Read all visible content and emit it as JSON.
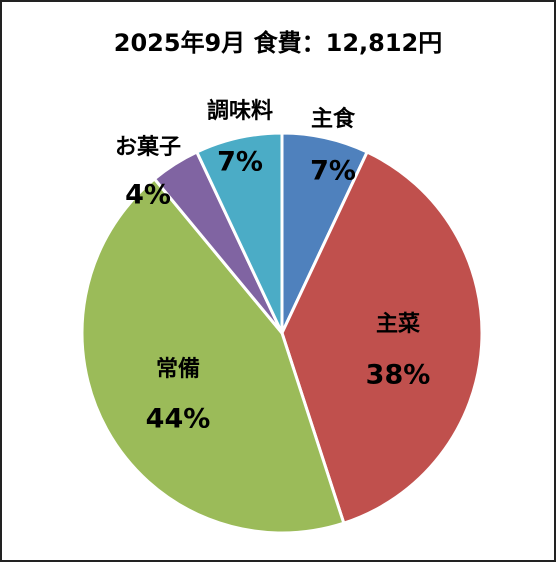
{
  "chart_data": {
    "type": "pie",
    "title": "2025年9月 食費：12,812円",
    "categories": [
      "主食",
      "主菜",
      "常備",
      "お菓子",
      "調味料"
    ],
    "values": [
      7,
      38,
      44,
      4,
      7
    ],
    "value_labels": [
      "7%",
      "38%",
      "44%",
      "4%",
      "7%"
    ],
    "colors": [
      "#4f81bd",
      "#c0504d",
      "#9bbb59",
      "#8064a2",
      "#4bacc6"
    ]
  }
}
